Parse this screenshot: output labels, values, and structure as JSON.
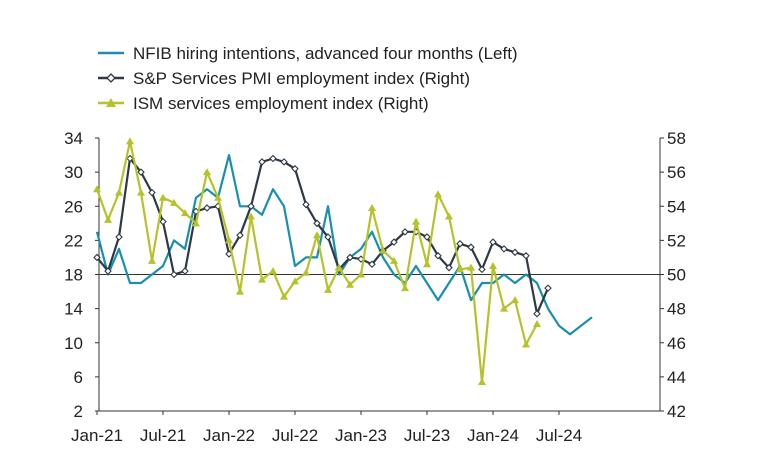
{
  "chart_data": {
    "type": "line",
    "title": "",
    "legend_position": "top-left",
    "x_ticks": [
      "Jan-21",
      "Jul-21",
      "Jan-22",
      "Jul-22",
      "Jan-23",
      "Jul-23",
      "Jan-24",
      "Jul-24"
    ],
    "left_axis": {
      "ticks": [
        2,
        6,
        10,
        14,
        18,
        22,
        26,
        30,
        34
      ],
      "range": [
        2,
        34
      ]
    },
    "right_axis": {
      "ticks": [
        42,
        44,
        46,
        48,
        50,
        52,
        54,
        56,
        58
      ],
      "range": [
        42,
        58
      ]
    },
    "reference_line": {
      "axis": "right",
      "value": 50
    },
    "series": [
      {
        "name": "NFIB hiring intentions, advanced four months (Left)",
        "axis": "left",
        "color": "#1a8fad",
        "marker": "none",
        "start_index": 0,
        "values": [
          23,
          18,
          21,
          17,
          17,
          18,
          19,
          22,
          21,
          27,
          28,
          27,
          32,
          26,
          26,
          25,
          28,
          26,
          19,
          20,
          20,
          26,
          18,
          20,
          21,
          23,
          20,
          18,
          17,
          19,
          17,
          15,
          17,
          19,
          15,
          17,
          17,
          18,
          17,
          18,
          17,
          14,
          12,
          11,
          12,
          13
        ]
      },
      {
        "name": "S&P Services PMI employment index (Right)",
        "axis": "right",
        "color": "#2d3a45",
        "marker": "diamond",
        "start_index": 0,
        "values": [
          51.0,
          50.2,
          52.2,
          56.8,
          56.0,
          54.8,
          53.1,
          50.0,
          50.2,
          53.7,
          53.9,
          54.0,
          51.2,
          52.3,
          54.0,
          56.6,
          56.8,
          56.6,
          56.2,
          54.1,
          53.0,
          52.2,
          50.3,
          51.0,
          50.9,
          50.6,
          51.4,
          51.9,
          52.5,
          52.5,
          52.2,
          51.1,
          50.4,
          51.8,
          51.6,
          50.3,
          51.9,
          51.5,
          51.3,
          51.1,
          47.7,
          49.2
        ]
      },
      {
        "name": "ISM services employment index (Right)",
        "axis": "right",
        "color": "#b5c22a",
        "marker": "triangle",
        "start_index": 0,
        "values": [
          55.0,
          53.2,
          54.8,
          57.8,
          54.8,
          50.8,
          54.5,
          54.2,
          53.6,
          53.0,
          56.0,
          54.5,
          52.0,
          49.0,
          53.4,
          49.7,
          50.2,
          48.7,
          49.6,
          50.1,
          52.3,
          49.1,
          50.4,
          49.4,
          50.0,
          53.9,
          51.4,
          50.8,
          49.2,
          53.1,
          50.6,
          54.7,
          53.4,
          50.3,
          50.4,
          43.7,
          50.5,
          48.0,
          48.5,
          45.9,
          47.1
        ]
      }
    ]
  }
}
